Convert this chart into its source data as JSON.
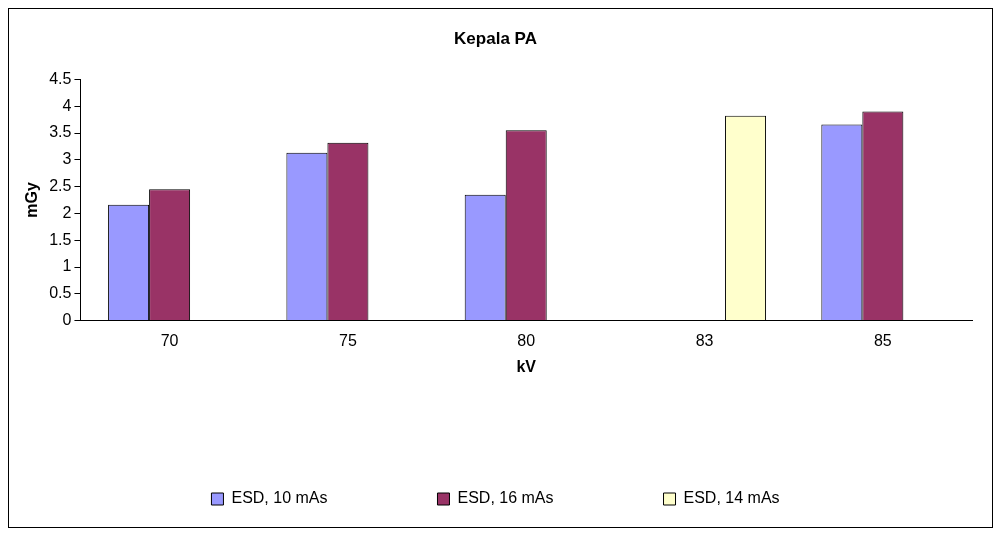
{
  "chart_data": {
    "type": "bar",
    "title": "Kepala PA",
    "xlabel": "kV",
    "ylabel": "mGy",
    "categories": [
      "70",
      "75",
      "80",
      "83",
      "85"
    ],
    "series": [
      {
        "name": "ESD, 10 mAs",
        "color": "#9999ff",
        "values": [
          2.16,
          3.13,
          2.35,
          null,
          3.66
        ]
      },
      {
        "name": "ESD, 16 mAs",
        "color": "#993366",
        "values": [
          2.45,
          3.32,
          3.55,
          null,
          3.9
        ]
      },
      {
        "name": "ESD, 14 mAs",
        "color": "#ffffcc",
        "values": [
          null,
          null,
          null,
          3.82,
          null
        ]
      }
    ],
    "ylim": [
      0,
      4.5
    ],
    "yticks": [
      0,
      0.5,
      1,
      1.5,
      2,
      2.5,
      3,
      3.5,
      4,
      4.5
    ],
    "grid": false,
    "legend": "bottom"
  }
}
